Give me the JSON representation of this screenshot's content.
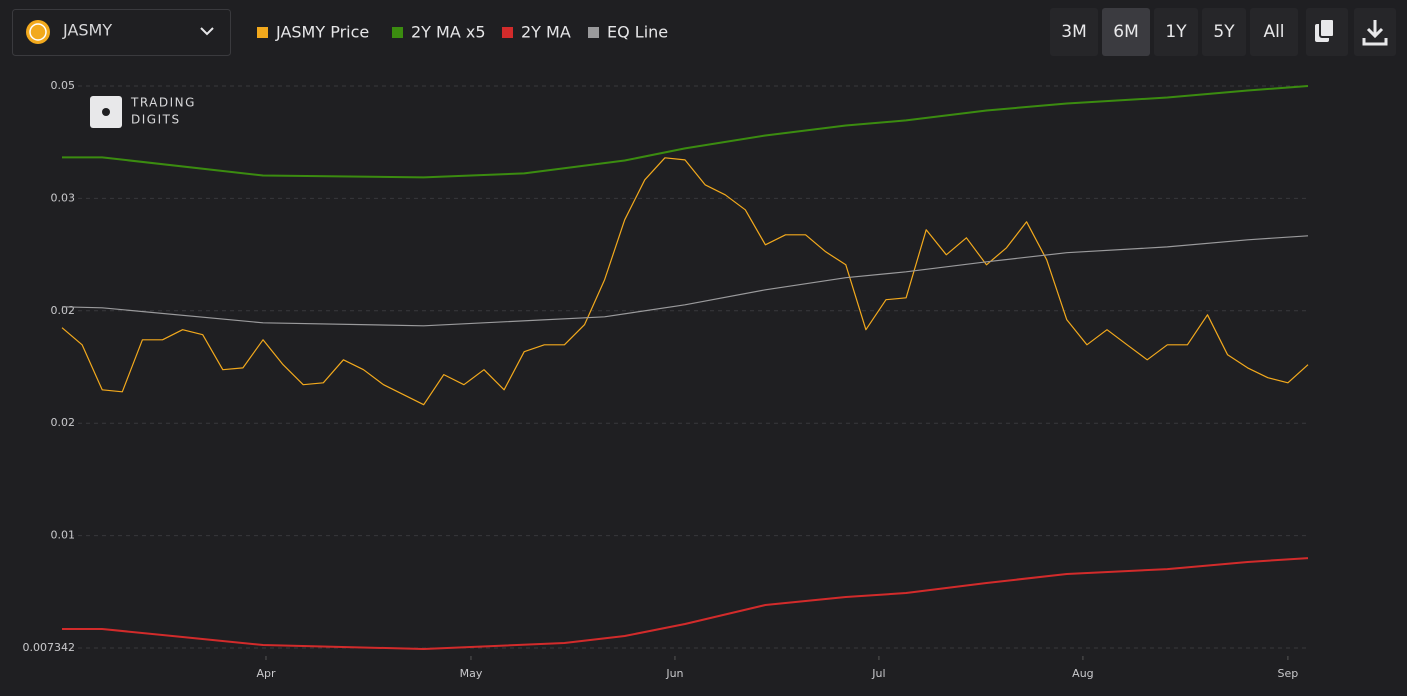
{
  "header": {
    "asset": "JASMY",
    "ranges": [
      "3M",
      "6M",
      "1Y",
      "5Y",
      "All"
    ],
    "active_range": 1
  },
  "watermark": [
    "TRADING",
    "DIGITS"
  ],
  "chart_data": {
    "type": "line",
    "log_y": true,
    "grid": true,
    "xlim": [
      0,
      62
    ],
    "xticks": [
      {
        "value": 10.15,
        "label": "Apr"
      },
      {
        "value": 20.35,
        "label": "May"
      },
      {
        "value": 30.5,
        "label": "Jun"
      },
      {
        "value": 40.65,
        "label": "Jul"
      },
      {
        "value": 50.8,
        "label": "Aug"
      },
      {
        "value": 61.0,
        "label": "Sep"
      }
    ],
    "ylim": [
      0.007342,
      0.050452
    ],
    "yticks": [
      {
        "value": 0.007342,
        "label": "0.007342"
      },
      {
        "value": 0.010795,
        "label": "0.01"
      },
      {
        "value": 0.015872,
        "label": "0.02"
      },
      {
        "value": 0.023337,
        "label": "0.02"
      },
      {
        "value": 0.034313,
        "label": "0.03"
      },
      {
        "value": 0.050452,
        "label": "0.05"
      }
    ],
    "series": [
      {
        "name": "JASMY Price",
        "color": "#f2a91d",
        "width": 1.2,
        "x": [
          0,
          1,
          2,
          3,
          4,
          5,
          6,
          7,
          8,
          9,
          10,
          11,
          12,
          13,
          14,
          15,
          16,
          17,
          18,
          19,
          20,
          21,
          22,
          23,
          24,
          25,
          26,
          27,
          28,
          29,
          30,
          31,
          32,
          33,
          34,
          35,
          36,
          37,
          38,
          39,
          40,
          41,
          42,
          43,
          44,
          45,
          46,
          47,
          48,
          49,
          50,
          51,
          52,
          53,
          54,
          55,
          56,
          57,
          58,
          59,
          60,
          61,
          62
        ],
        "values": [
          0.02202,
          0.02077,
          0.0178,
          0.01768,
          0.02113,
          0.02113,
          0.02187,
          0.0215,
          0.01907,
          0.01919,
          0.02113,
          0.0194,
          0.01811,
          0.01823,
          0.01973,
          0.01907,
          0.01811,
          0.0175,
          0.01691,
          0.01875,
          0.01811,
          0.01907,
          0.0178,
          0.02028,
          0.02077,
          0.02077,
          0.02225,
          0.02596,
          0.03188,
          0.03657,
          0.03944,
          0.03916,
          0.03595,
          0.03474,
          0.033,
          0.02927,
          0.03029,
          0.03029,
          0.02857,
          0.02733,
          0.02187,
          0.02424,
          0.0244,
          0.03081,
          0.02828,
          0.02998,
          0.02733,
          0.02897,
          0.03167,
          0.0278,
          0.02263,
          0.02077,
          0.02187,
          0.02077,
          0.01973,
          0.02077,
          0.02077,
          0.02302,
          0.02007,
          0.01919,
          0.01855,
          0.01823,
          0.0194
        ]
      },
      {
        "name": "2Y MA x5",
        "color": "#3b8c10",
        "width": 2,
        "x": [
          0,
          2,
          10,
          18,
          23,
          28,
          31,
          35,
          39,
          42,
          46,
          50,
          55,
          59,
          62
        ],
        "values": [
          0.03949,
          0.03949,
          0.03712,
          0.03687,
          0.03738,
          0.03908,
          0.04073,
          0.04258,
          0.04406,
          0.04483,
          0.04639,
          0.04752,
          0.0485,
          0.04968,
          0.05045
        ]
      },
      {
        "name": "2Y MA",
        "color": "#d22b2b",
        "width": 2,
        "x": [
          0,
          2,
          10,
          18,
          25,
          28,
          31,
          35,
          39,
          42,
          46,
          50,
          55,
          59,
          62
        ],
        "values": [
          0.007836,
          0.007836,
          0.007418,
          0.007317,
          0.007469,
          0.00765,
          0.007972,
          0.008508,
          0.008744,
          0.008865,
          0.009175,
          0.009462,
          0.009625,
          0.00986,
          0.009995
        ]
      },
      {
        "name": "EQ Line",
        "color": "#9a9a9c",
        "width": 1.2,
        "x": [
          0,
          2,
          10,
          18,
          27,
          31,
          35,
          39,
          42,
          46,
          50,
          55,
          59,
          62
        ],
        "values": [
          0.02366,
          0.02358,
          0.0224,
          0.02217,
          0.02286,
          0.02382,
          0.02508,
          0.02614,
          0.02668,
          0.02761,
          0.02848,
          0.02906,
          0.02977,
          0.03018
        ]
      }
    ]
  }
}
